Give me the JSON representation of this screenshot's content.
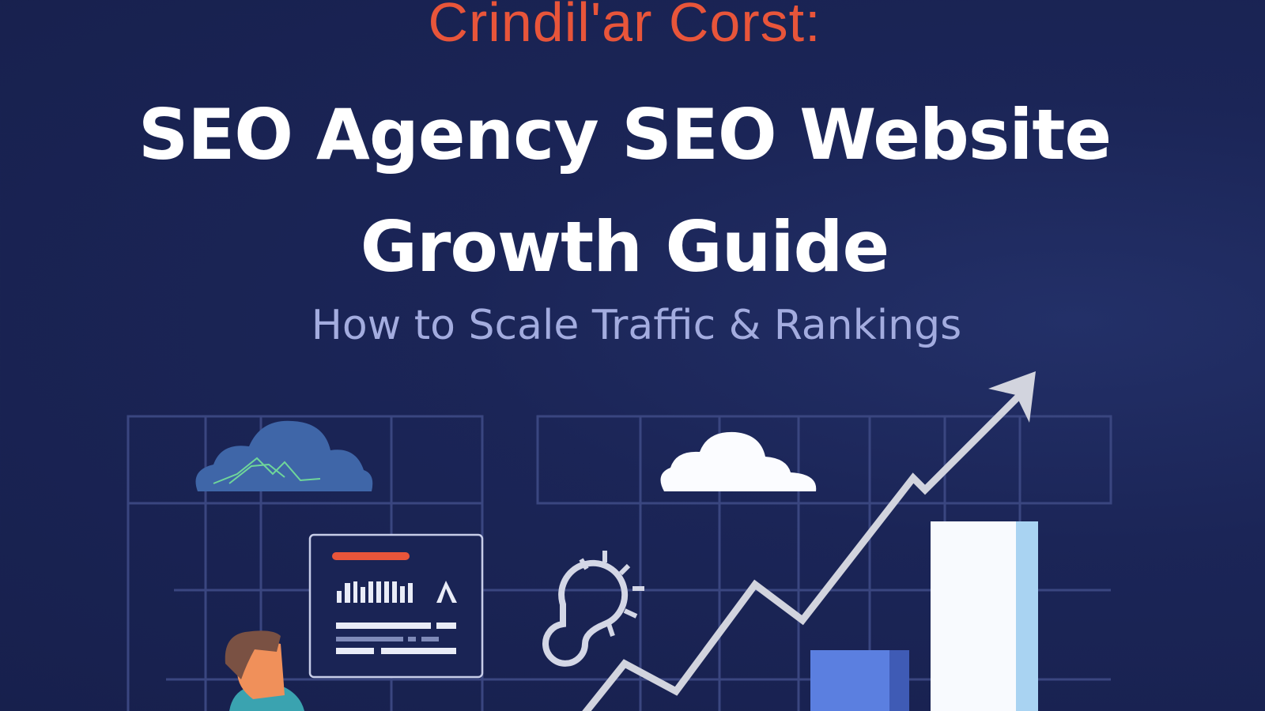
{
  "header": {
    "eyebrow": "Crindil'ar Corst:",
    "title_line1": "SEO Agency SEO Website",
    "title_line2": "Growth Guide",
    "subtitle": "How to Scale Traffic & Rankings"
  },
  "colors": {
    "background": "#1b2557",
    "accent_orange": "#e8553a",
    "subtitle": "#a3acdf",
    "bar_blue": "#5b7fe0",
    "bar_light": "#a9d3f2"
  },
  "illustration": {
    "icons": [
      "cloud-icon",
      "cloud-icon",
      "gear-icon",
      "trend-arrow-icon",
      "report-card-icon",
      "person-figure"
    ]
  }
}
